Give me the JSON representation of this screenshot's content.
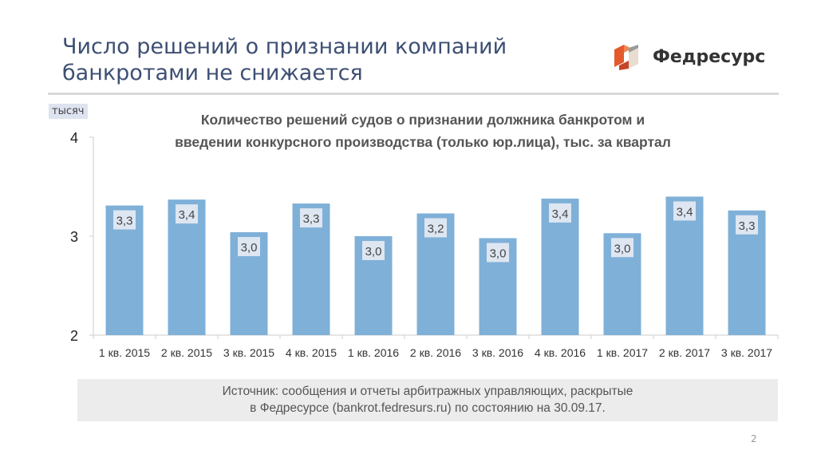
{
  "slide": {
    "title_lines": [
      "Число решений о признании компаний",
      "банкротами не снижается"
    ],
    "logo_text": "Федресурс",
    "page_number": "2",
    "source_lines": [
      "Источник: сообщения и отчеты арбитражных управляющих, раскрытые",
      "в Федресурсе (bankrot.fedresurs.ru) по состоянию на 30.09.17."
    ]
  },
  "colors": {
    "bar": "#7fb0d8",
    "label_bg": "#dde6f1",
    "title": "#3d4f73"
  },
  "chart_data": {
    "type": "bar",
    "title_lines": [
      "Количество решений судов о признании должника банкротом и",
      "введении конкурсного производства (только юр.лица), тыс. за квартал"
    ],
    "ylabel": "тысяч",
    "ylim": [
      2,
      4
    ],
    "yticks": [
      "2",
      "3",
      "4"
    ],
    "grid": false,
    "categories": [
      "1 кв. 2015",
      "2 кв. 2015",
      "3 кв. 2015",
      "4 кв. 2015",
      "1 кв. 2016",
      "2 кв. 2016",
      "3 кв. 2016",
      "4 кв. 2016",
      "1 кв. 2017",
      "2 кв. 2017",
      "3 кв. 2017"
    ],
    "values": [
      3.31,
      3.37,
      3.04,
      3.33,
      3.0,
      3.23,
      2.98,
      3.38,
      3.03,
      3.4,
      3.26
    ],
    "data_labels": [
      "3,3",
      "3,4",
      "3,0",
      "3,3",
      "3,0",
      "3,2",
      "3,0",
      "3,4",
      "3,0",
      "3,4",
      "3,3"
    ]
  }
}
